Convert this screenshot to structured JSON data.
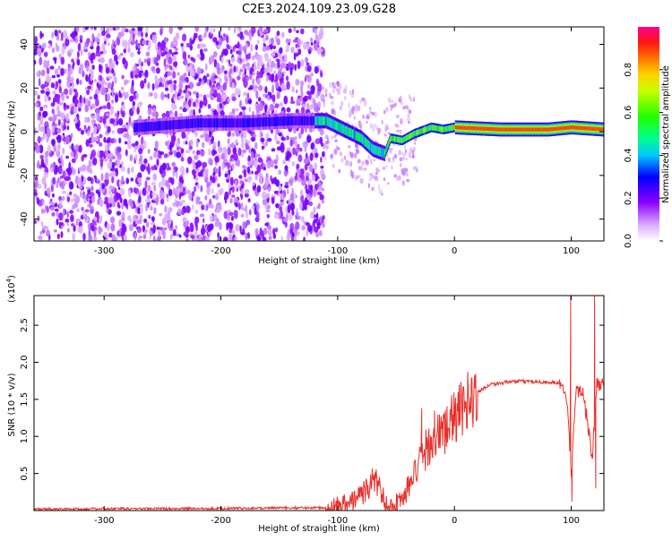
{
  "title": "C2E3.2024.109.23.09.G28",
  "chart_data": [
    {
      "type": "heatmap",
      "xlabel": "Height of straight line (km)",
      "ylabel": "Frequency (Hz)",
      "xlim": [
        -360,
        128
      ],
      "ylim": [
        -50,
        48
      ],
      "xticks": [
        -300,
        -200,
        -100,
        0,
        100
      ],
      "yticks": [
        -40,
        -20,
        0,
        20,
        40
      ],
      "colorbar": {
        "label": "Normalized spectral amplitude",
        "range": [
          0,
          1
        ],
        "ticks": [
          0.0,
          0.2,
          0.4,
          0.6,
          0.8
        ],
        "tick_labels": [
          "0.0",
          "0.2",
          "0.4",
          "0.6",
          "0.8"
        ]
      },
      "ridge": [
        {
          "x": -270,
          "y": 2
        },
        {
          "x": -220,
          "y": 4
        },
        {
          "x": -180,
          "y": 4
        },
        {
          "x": -140,
          "y": 5
        },
        {
          "x": -110,
          "y": 5
        },
        {
          "x": -95,
          "y": 1
        },
        {
          "x": -80,
          "y": -3
        },
        {
          "x": -70,
          "y": -8
        },
        {
          "x": -60,
          "y": -10
        },
        {
          "x": -55,
          "y": -3
        },
        {
          "x": -45,
          "y": -4
        },
        {
          "x": -35,
          "y": -1
        },
        {
          "x": -20,
          "y": 2
        },
        {
          "x": -10,
          "y": 1
        },
        {
          "x": 0,
          "y": 2
        },
        {
          "x": 40,
          "y": 1
        },
        {
          "x": 80,
          "y": 1
        },
        {
          "x": 100,
          "y": 2
        },
        {
          "x": 128,
          "y": 1
        }
      ],
      "grid": false
    },
    {
      "type": "line",
      "xlabel": "Height of straight line (km)",
      "ylabel": "SNR (10 * v/v)",
      "y_multiplier_label": "(x10",
      "y_multiplier_exponent": "4",
      "y_multiplier_close": ")",
      "xlim": [
        -360,
        128
      ],
      "ylim": [
        0,
        2.9
      ],
      "xticks": [
        -300,
        -200,
        -100,
        0,
        100
      ],
      "yticks": [
        0.5,
        1.0,
        1.5,
        2.0,
        2.5
      ],
      "ytick_labels": [
        "0.5",
        "1.0",
        "1.5",
        "2.0",
        "2.5"
      ],
      "series": [
        {
          "color": "#e8302a",
          "x": [
            -360,
            -200,
            -110,
            -90,
            -75,
            -68,
            -62,
            -55,
            -45,
            -35,
            -28,
            -20,
            -10,
            0,
            10,
            20,
            30,
            50,
            70,
            90,
            96,
            100,
            104,
            110,
            118,
            122,
            128
          ],
          "y": [
            0.02,
            0.03,
            0.04,
            0.1,
            0.28,
            0.45,
            0.2,
            0.05,
            0.15,
            0.45,
            0.7,
            0.95,
            1.05,
            1.25,
            1.45,
            1.6,
            1.7,
            1.74,
            1.74,
            1.72,
            1.55,
            0.5,
            1.6,
            1.65,
            0.7,
            1.7,
            1.7
          ],
          "spikes": [
            {
              "x": 99.5,
              "y": 2.9
            },
            {
              "x": 100.5,
              "y": 0.12
            },
            {
              "x": 120,
              "y": 2.9
            },
            {
              "x": 121,
              "y": 0.3
            },
            {
              "x": -28,
              "y": 1.38
            },
            {
              "x": -17,
              "y": 1.35
            }
          ]
        }
      ],
      "grid": false
    }
  ]
}
